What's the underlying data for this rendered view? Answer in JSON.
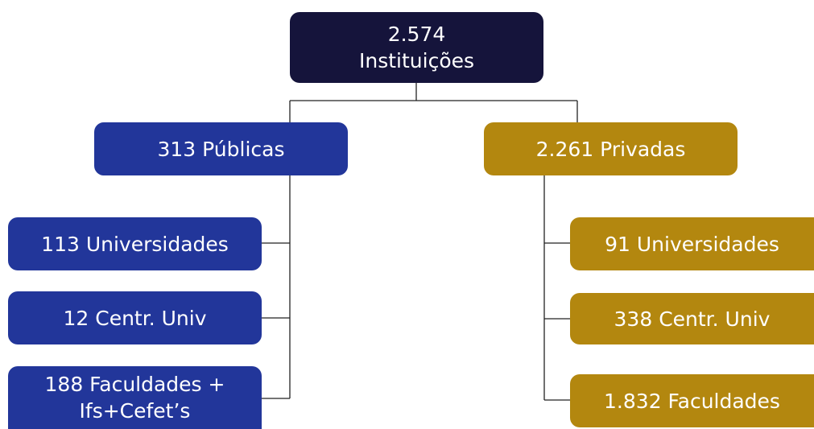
{
  "nodes": [
    {
      "lines": [
        "2.574",
        "Instituições"
      ]
    },
    {
      "lines": [
        "313 Públicas"
      ]
    },
    {
      "lines": [
        "2.261 Privadas"
      ]
    },
    {
      "lines": [
        "113 Universidades"
      ]
    },
    {
      "lines": [
        "12 Centr. Univ"
      ]
    },
    {
      "lines": [
        "188 Faculdades +",
        "Ifs+Cefet’s"
      ]
    },
    {
      "lines": [
        "91 Universidades"
      ]
    },
    {
      "lines": [
        "338 Centr. Univ"
      ]
    },
    {
      "lines": [
        "1.832 Faculdades"
      ]
    }
  ]
}
